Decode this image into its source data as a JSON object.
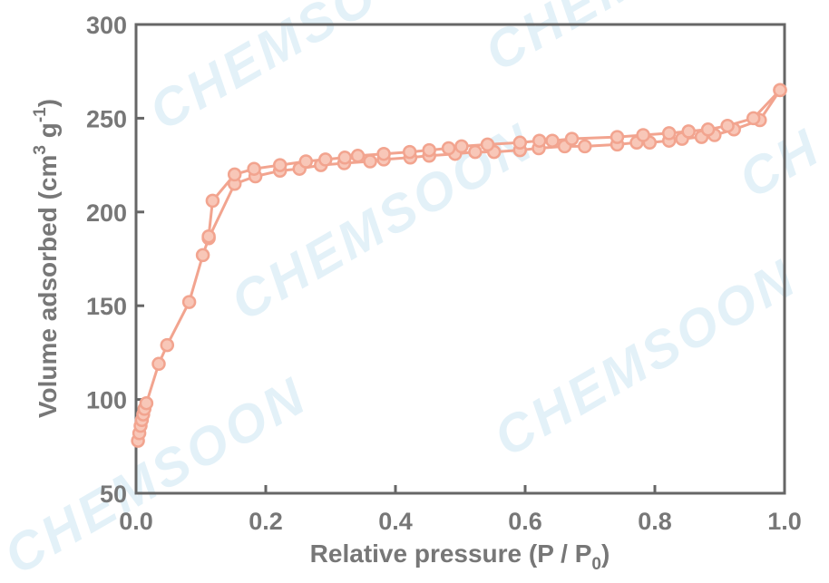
{
  "chart_data": {
    "type": "line",
    "xlabel": "Relative pressure (P / P0)",
    "ylabel": "Volume adsorbed (cm3 g-1)",
    "xlim": [
      0.0,
      1.0
    ],
    "ylim": [
      50,
      300
    ],
    "xticks": [
      "0.0",
      "0.2",
      "0.4",
      "0.6",
      "0.8",
      "1.0"
    ],
    "yticks": [
      "50",
      "100",
      "150",
      "200",
      "250",
      "300"
    ],
    "grid": false,
    "color": "#f2a48f",
    "marker_fill": "#f8c7b8",
    "series": [
      {
        "points": [
          [
            0.003,
            78
          ],
          [
            0.005,
            82
          ],
          [
            0.007,
            86
          ],
          [
            0.009,
            89
          ],
          [
            0.011,
            92
          ],
          [
            0.013,
            95
          ],
          [
            0.016,
            98
          ],
          [
            0.035,
            119
          ],
          [
            0.048,
            129
          ],
          [
            0.082,
            152
          ],
          [
            0.103,
            177
          ],
          [
            0.112,
            186
          ],
          [
            0.152,
            215
          ],
          [
            0.184,
            219
          ],
          [
            0.222,
            222
          ],
          [
            0.252,
            223
          ],
          [
            0.285,
            225
          ],
          [
            0.321,
            226
          ],
          [
            0.361,
            227
          ],
          [
            0.382,
            228
          ],
          [
            0.423,
            229
          ],
          [
            0.452,
            230
          ],
          [
            0.492,
            231
          ],
          [
            0.523,
            232
          ],
          [
            0.552,
            232
          ],
          [
            0.592,
            233
          ],
          [
            0.621,
            234
          ],
          [
            0.661,
            235
          ],
          [
            0.692,
            235
          ],
          [
            0.742,
            236
          ],
          [
            0.772,
            237
          ],
          [
            0.792,
            237
          ],
          [
            0.822,
            238
          ],
          [
            0.842,
            239
          ],
          [
            0.872,
            240
          ],
          [
            0.892,
            241
          ],
          [
            0.922,
            244
          ],
          [
            0.962,
            249
          ],
          [
            0.993,
            265
          ]
        ]
      },
      {
        "points": [
          [
            0.993,
            265
          ],
          [
            0.952,
            250
          ],
          [
            0.912,
            246
          ],
          [
            0.882,
            244
          ],
          [
            0.852,
            243
          ],
          [
            0.822,
            242
          ],
          [
            0.782,
            241
          ],
          [
            0.742,
            240
          ],
          [
            0.672,
            239
          ],
          [
            0.642,
            238
          ],
          [
            0.622,
            238
          ],
          [
            0.592,
            237
          ],
          [
            0.542,
            236
          ],
          [
            0.502,
            235
          ],
          [
            0.482,
            234
          ],
          [
            0.452,
            233
          ],
          [
            0.422,
            232
          ],
          [
            0.382,
            231
          ],
          [
            0.342,
            230
          ],
          [
            0.322,
            229
          ],
          [
            0.292,
            228
          ],
          [
            0.262,
            227
          ],
          [
            0.222,
            225
          ],
          [
            0.182,
            223
          ],
          [
            0.152,
            220
          ],
          [
            0.118,
            206
          ],
          [
            0.112,
            187
          ]
        ]
      }
    ]
  }
}
